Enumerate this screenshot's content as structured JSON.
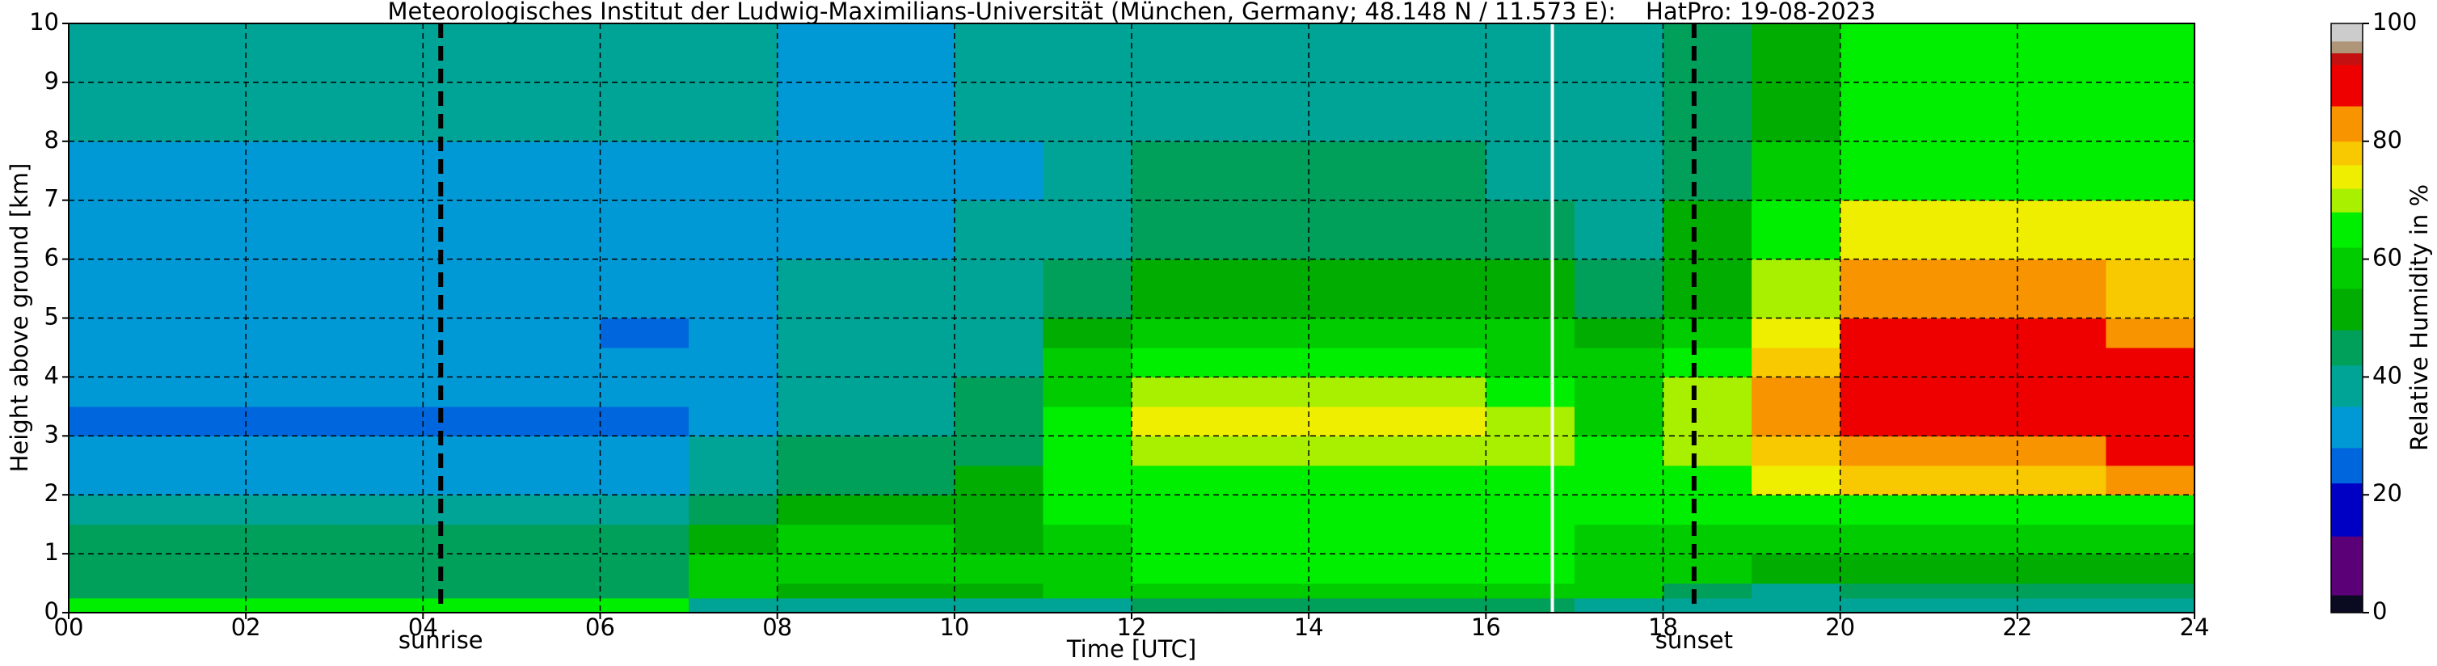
{
  "chart_data": {
    "type": "heatmap",
    "title": "Meteorologisches Institut der Ludwig-Maximilians-Universität (München, Germany; 48.148 N / 11.573 E):    HatPro: 19-08-2023",
    "xlabel": "Time [UTC]",
    "ylabel": "Height above ground [km]",
    "colorbar_label": "Relative Humidity in %",
    "xlim": [
      0,
      24
    ],
    "ylim": [
      0,
      10
    ],
    "xticks": [
      {
        "value": 0,
        "label": "00"
      },
      {
        "value": 2,
        "label": "02"
      },
      {
        "value": 4,
        "label": "04"
      },
      {
        "value": 6,
        "label": "06"
      },
      {
        "value": 8,
        "label": "08"
      },
      10,
      12,
      14,
      16,
      18,
      20,
      22,
      24
    ],
    "yticks": [
      0,
      1,
      2,
      3,
      4,
      5,
      6,
      7,
      8,
      9,
      10
    ],
    "grid": true,
    "x_bins": [
      0,
      1,
      2,
      3,
      4,
      5,
      6,
      7,
      8,
      9,
      10,
      11,
      12,
      13,
      14,
      15,
      16,
      17,
      18,
      19,
      20,
      21,
      22,
      23,
      24
    ],
    "y_bins": [
      0,
      0.25,
      0.5,
      1,
      1.5,
      2,
      2.5,
      3,
      3.5,
      4,
      4.5,
      5,
      6,
      7,
      8,
      10
    ],
    "values": [
      [
        62,
        42,
        42,
        42,
        40,
        32,
        30,
        27,
        28,
        30,
        29,
        30,
        31,
        33,
        38
      ],
      [
        62,
        42,
        42,
        42,
        40,
        32,
        30,
        27,
        28,
        30,
        29,
        30,
        31,
        33,
        38
      ],
      [
        62,
        42,
        42,
        42,
        40,
        32,
        30,
        27,
        28,
        30,
        29,
        30,
        31,
        33,
        38
      ],
      [
        62,
        42,
        42,
        42,
        40,
        32,
        30,
        27,
        28,
        30,
        29,
        30,
        31,
        33,
        38
      ],
      [
        62,
        42,
        42,
        42,
        40,
        32,
        30,
        27,
        28,
        30,
        29,
        30,
        31,
        33,
        38
      ],
      [
        62,
        42,
        42,
        42,
        40,
        32,
        30,
        27,
        28,
        30,
        29,
        30,
        31,
        33,
        38
      ],
      [
        62,
        42,
        42,
        42,
        40,
        32,
        30,
        27,
        28,
        28,
        27,
        28,
        30,
        33,
        38
      ],
      [
        40,
        55,
        58,
        52,
        42,
        38,
        36,
        34,
        34,
        33,
        32,
        32,
        32,
        33,
        36
      ],
      [
        38,
        50,
        58,
        60,
        50,
        45,
        42,
        40,
        40,
        40,
        38,
        35,
        33,
        32,
        34
      ],
      [
        38,
        50,
        58,
        60,
        50,
        45,
        42,
        40,
        40,
        40,
        38,
        35,
        33,
        32,
        34
      ],
      [
        38,
        52,
        55,
        52,
        50,
        48,
        45,
        42,
        42,
        40,
        38,
        36,
        35,
        34,
        36
      ],
      [
        40,
        55,
        60,
        60,
        62,
        63,
        64,
        62,
        60,
        55,
        52,
        45,
        40,
        38,
        38
      ],
      [
        42,
        58,
        62,
        62,
        63,
        64,
        68,
        72,
        68,
        62,
        58,
        52,
        47,
        42,
        38
      ],
      [
        42,
        58,
        62,
        62,
        63,
        64,
        68,
        72,
        68,
        62,
        58,
        52,
        47,
        42,
        38
      ],
      [
        42,
        58,
        62,
        62,
        63,
        64,
        68,
        72,
        68,
        62,
        58,
        52,
        47,
        42,
        38
      ],
      [
        42,
        58,
        62,
        62,
        63,
        64,
        68,
        72,
        68,
        62,
        58,
        52,
        47,
        42,
        38
      ],
      [
        42,
        58,
        62,
        62,
        63,
        64,
        68,
        70,
        66,
        60,
        56,
        50,
        46,
        41,
        38
      ],
      [
        40,
        55,
        60,
        60,
        62,
        63,
        64,
        60,
        58,
        55,
        50,
        45,
        40,
        38,
        38
      ],
      [
        35,
        45,
        55,
        60,
        62,
        65,
        68,
        70,
        68,
        62,
        58,
        52,
        48,
        45,
        42
      ],
      [
        35,
        40,
        50,
        58,
        64,
        72,
        78,
        82,
        80,
        76,
        72,
        68,
        62,
        56,
        50
      ],
      [
        35,
        42,
        52,
        58,
        66,
        78,
        85,
        90,
        91,
        90,
        86,
        80,
        74,
        66,
        62
      ],
      [
        35,
        42,
        52,
        58,
        66,
        78,
        85,
        90,
        91,
        90,
        86,
        80,
        74,
        66,
        62
      ],
      [
        35,
        42,
        52,
        58,
        66,
        78,
        85,
        90,
        91,
        90,
        86,
        80,
        74,
        66,
        62
      ],
      [
        38,
        42,
        52,
        58,
        66,
        80,
        86,
        90,
        90,
        88,
        84,
        78,
        72,
        66,
        62
      ]
    ],
    "colorscale": {
      "bounds": [
        0,
        3,
        13,
        22,
        28,
        35,
        42,
        48,
        55,
        62,
        68,
        72,
        76,
        80,
        86,
        93,
        95,
        97,
        100
      ],
      "colors": [
        "#0a0a20",
        "#5c0078",
        "#0000c4",
        "#0066dd",
        "#0099d6",
        "#00a496",
        "#009f5a",
        "#00ad00",
        "#00cc00",
        "#00ee00",
        "#a8f000",
        "#f0ee00",
        "#f8c800",
        "#f89400",
        "#ee0000",
        "#c41010",
        "#b09678",
        "#cccccc"
      ]
    },
    "colorbar_ticks": [
      0,
      20,
      40,
      60,
      80,
      100
    ],
    "annotations": [
      {
        "label": "sunrise",
        "x": 4.2
      },
      {
        "label": "sunset",
        "x": 18.35
      }
    ],
    "gaps": [
      16.75
    ]
  }
}
